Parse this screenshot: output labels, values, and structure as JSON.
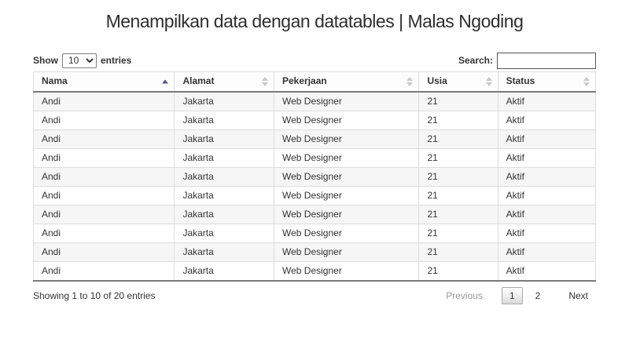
{
  "page": {
    "title": "Menampilkan data dengan datatables | Malas Ngoding"
  },
  "toolbar": {
    "length": {
      "prefix": "Show",
      "suffix": "entries",
      "selected": "10",
      "options": [
        "10"
      ]
    },
    "search": {
      "label": "Search:",
      "value": "",
      "placeholder": ""
    }
  },
  "table": {
    "columns": [
      {
        "label": "Nama",
        "sort": "asc"
      },
      {
        "label": "Alamat",
        "sort": "both"
      },
      {
        "label": "Pekerjaan",
        "sort": "both"
      },
      {
        "label": "Usia",
        "sort": "both"
      },
      {
        "label": "Status",
        "sort": "both"
      }
    ],
    "rows": [
      [
        "Andi",
        "Jakarta",
        "Web Designer",
        "21",
        "Aktif"
      ],
      [
        "Andi",
        "Jakarta",
        "Web Designer",
        "21",
        "Aktif"
      ],
      [
        "Andi",
        "Jakarta",
        "Web Designer",
        "21",
        "Aktif"
      ],
      [
        "Andi",
        "Jakarta",
        "Web Designer",
        "21",
        "Aktif"
      ],
      [
        "Andi",
        "Jakarta",
        "Web Designer",
        "21",
        "Aktif"
      ],
      [
        "Andi",
        "Jakarta",
        "Web Designer",
        "21",
        "Aktif"
      ],
      [
        "Andi",
        "Jakarta",
        "Web Designer",
        "21",
        "Aktif"
      ],
      [
        "Andi",
        "Jakarta",
        "Web Designer",
        "21",
        "Aktif"
      ],
      [
        "Andi",
        "Jakarta",
        "Web Designer",
        "21",
        "Aktif"
      ],
      [
        "Andi",
        "Jakarta",
        "Web Designer",
        "21",
        "Aktif"
      ]
    ]
  },
  "footer": {
    "info": "Showing 1 to 10 of 20 entries",
    "pagination": {
      "previous_label": "Previous",
      "next_label": "Next",
      "pages": [
        "1",
        "2"
      ],
      "current_page": "1",
      "previous_disabled": true,
      "next_disabled": false
    }
  },
  "colors": {
    "stripe_row": "#f6f6f6",
    "cell_border": "#dddddd",
    "header_bottom_border": "#7a7a7a",
    "sort_active_arrow": "#55568c",
    "sort_inactive_arrow": "#c9c9c9",
    "disabled_text": "#999999",
    "text": "#333333"
  }
}
